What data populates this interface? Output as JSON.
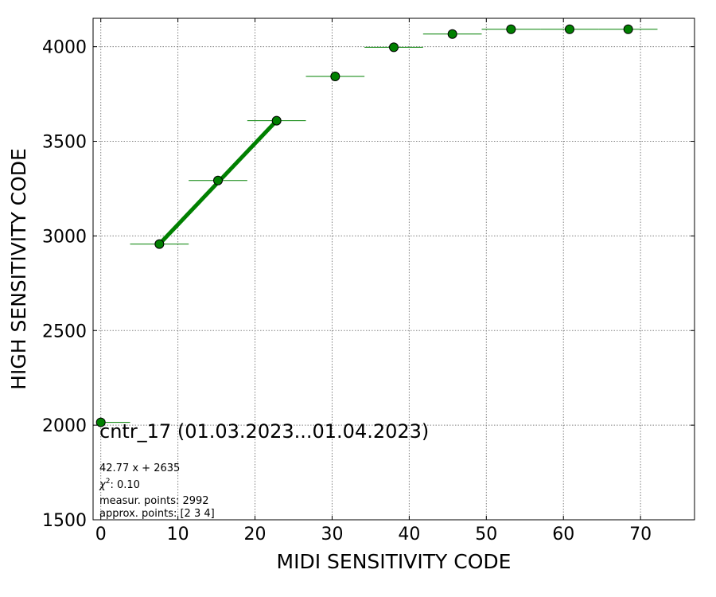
{
  "chart_data": {
    "type": "scatter",
    "xlabel": "MIDI SENSITIVITY CODE",
    "ylabel": "HIGH SENSITIVITY CODE",
    "xlim": [
      -1,
      77
    ],
    "ylim": [
      1500,
      4150
    ],
    "xticks": [
      "0",
      "10",
      "20",
      "30",
      "40",
      "50",
      "60",
      "70"
    ],
    "yticks": [
      "1500",
      "2000",
      "2500",
      "3000",
      "3500",
      "4000"
    ],
    "grid": true,
    "marker_color": "#008000",
    "points": [
      {
        "x": 0.0,
        "y": 2015,
        "xerr_low": 0.0,
        "xerr_high": 3.8
      },
      {
        "x": 7.6,
        "y": 2957,
        "xerr_low": 3.8,
        "xerr_high": 3.8
      },
      {
        "x": 15.2,
        "y": 3293,
        "xerr_low": 3.8,
        "xerr_high": 3.8
      },
      {
        "x": 22.8,
        "y": 3609,
        "xerr_low": 3.8,
        "xerr_high": 3.8
      },
      {
        "x": 30.4,
        "y": 3843,
        "xerr_low": 3.8,
        "xerr_high": 3.8
      },
      {
        "x": 38.0,
        "y": 3997,
        "xerr_low": 3.8,
        "xerr_high": 3.8
      },
      {
        "x": 45.6,
        "y": 4067,
        "xerr_low": 3.8,
        "xerr_high": 3.8
      },
      {
        "x": 53.2,
        "y": 4092,
        "xerr_low": 3.8,
        "xerr_high": 3.8
      },
      {
        "x": 60.8,
        "y": 4092,
        "xerr_low": 3.8,
        "xerr_high": 3.8
      },
      {
        "x": 68.4,
        "y": 4092,
        "xerr_low": 3.8,
        "xerr_high": 3.8
      }
    ],
    "fit_line": {
      "x": [
        7.6,
        22.8
      ],
      "y": [
        2957,
        3609
      ],
      "slope": 42.77,
      "intercept": 2635
    },
    "annotations": {
      "title": "cntr_17 (01.03.2023...01.04.2023)",
      "fit_equation": "42.77 x + 2635",
      "chi2_label": "χ",
      "chi2_sup": "2",
      "chi2_value": ": 0.10",
      "measur_points": "measur. points: 2992",
      "approx_points": "approx. points: [2 3 4]"
    }
  }
}
